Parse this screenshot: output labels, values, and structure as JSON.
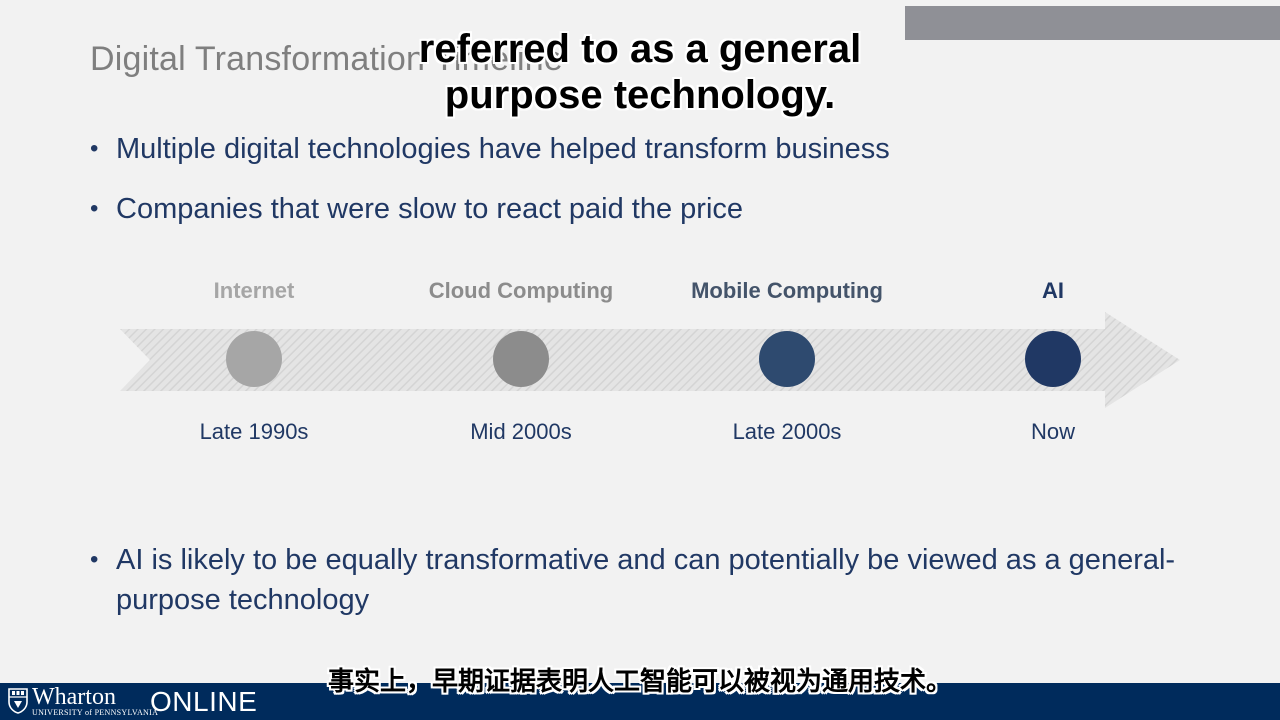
{
  "slide": {
    "title": "Digital Transformation Timeline",
    "bullets": [
      "Multiple digital technologies have helped transform business",
      "Companies that were slow to react paid the price"
    ],
    "bottom_bullet": "AI is likely to be equally transformative and can potentially be viewed as a general-purpose technology"
  },
  "timeline": {
    "milestones": [
      {
        "label": "Internet",
        "date": "Late 1990s",
        "label_color": "#a6a6a6",
        "dot_color": "#a6a6a6"
      },
      {
        "label": "Cloud Computing",
        "date": "Mid 2000s",
        "label_color": "#8c8c8c",
        "dot_color": "#8c8c8c"
      },
      {
        "label": "Mobile Computing",
        "date": "Late 2000s",
        "label_color": "#44546a",
        "dot_color": "#2e4a6f"
      },
      {
        "label": "AI",
        "date": "Now",
        "label_color": "#203864",
        "dot_color": "#203864"
      }
    ]
  },
  "subtitles": {
    "top": "referred to as a general\npurpose technology.",
    "bottom": "事实上，早期证据表明人工智能可以被视为通用技术。"
  },
  "footer": {
    "logo_name": "Wharton",
    "logo_university": "UNIVERSITY of PENNSYLVANIA",
    "logo_online": "ONLINE",
    "bar_color": "#002b5c"
  }
}
